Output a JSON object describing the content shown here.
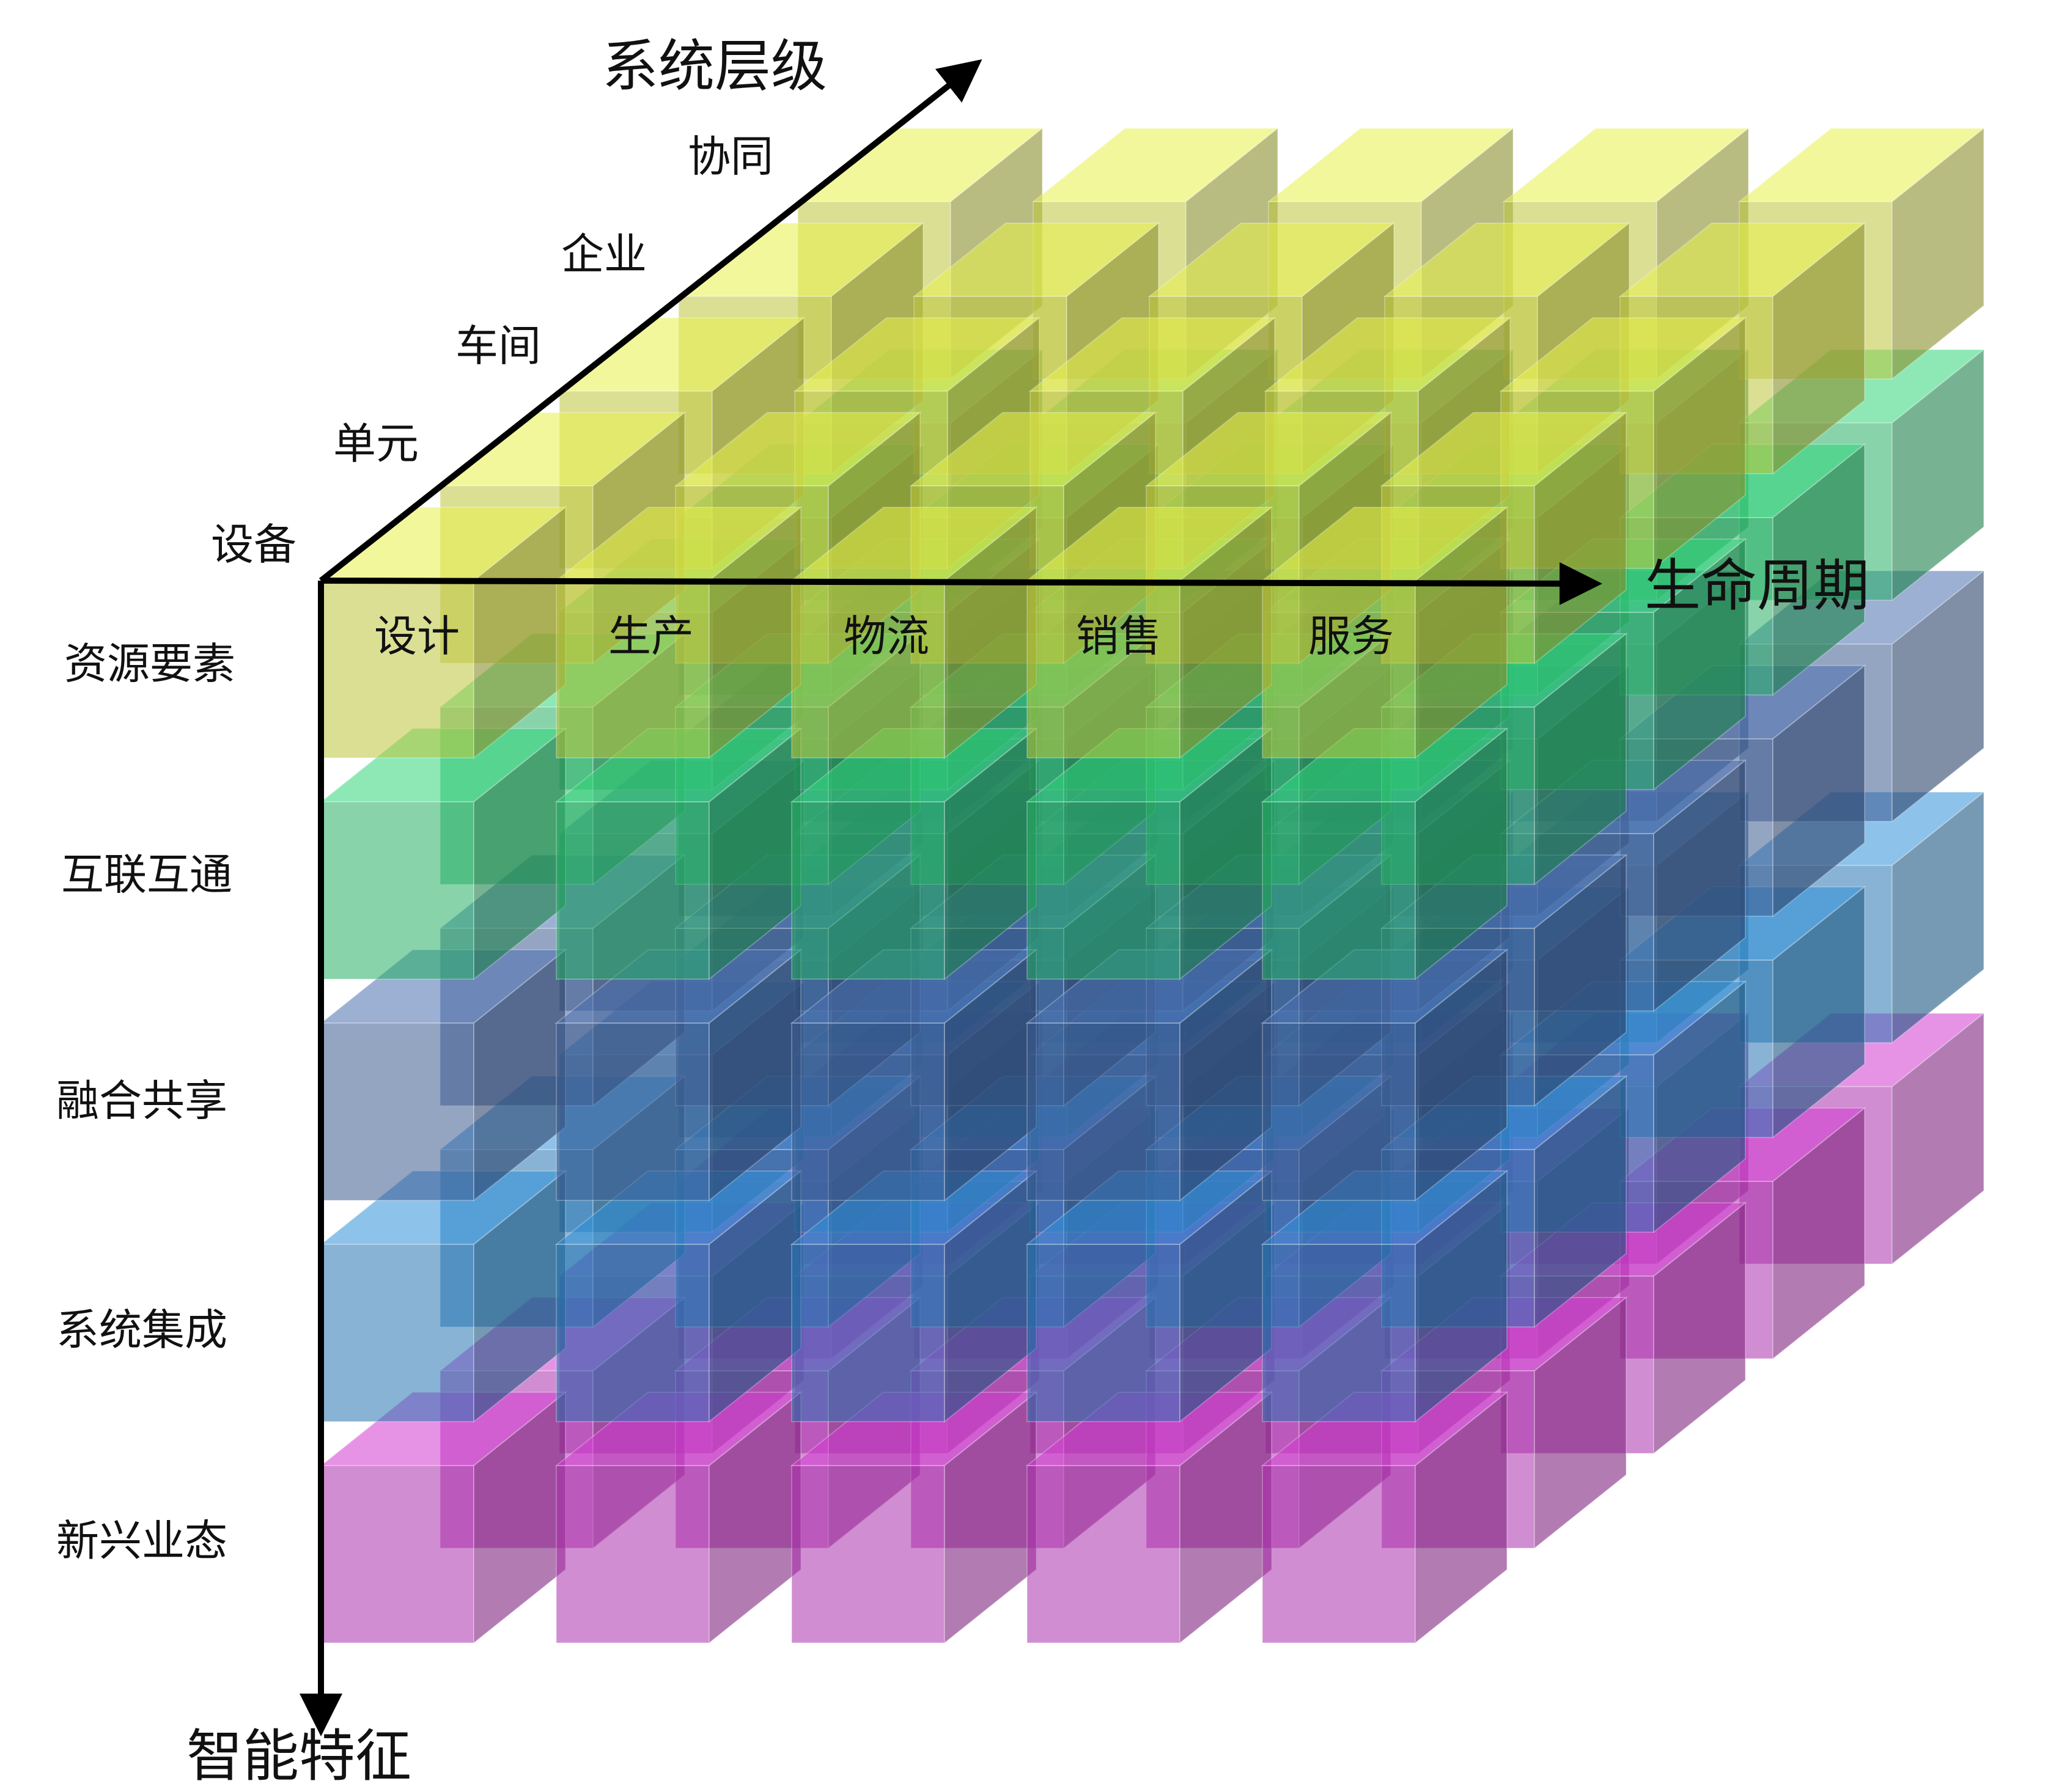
{
  "axes": {
    "system_level": {
      "title": "系统层级",
      "items": [
        "设备",
        "单元",
        "车间",
        "企业",
        "协同"
      ]
    },
    "life_cycle": {
      "title": "生命周期",
      "items": [
        "设计",
        "生产",
        "物流",
        "销售",
        "服务"
      ]
    },
    "intelligence": {
      "title": "智能特征",
      "items": [
        "资源要素",
        "互联互通",
        "融合共享",
        "系统集成",
        "新兴业态"
      ]
    }
  },
  "colors": {
    "layers": [
      "#e8f04a",
      "#2fd67a",
      "#4a6fb0",
      "#2f8fd8",
      "#d23ad2"
    ],
    "axis": "#000000"
  }
}
